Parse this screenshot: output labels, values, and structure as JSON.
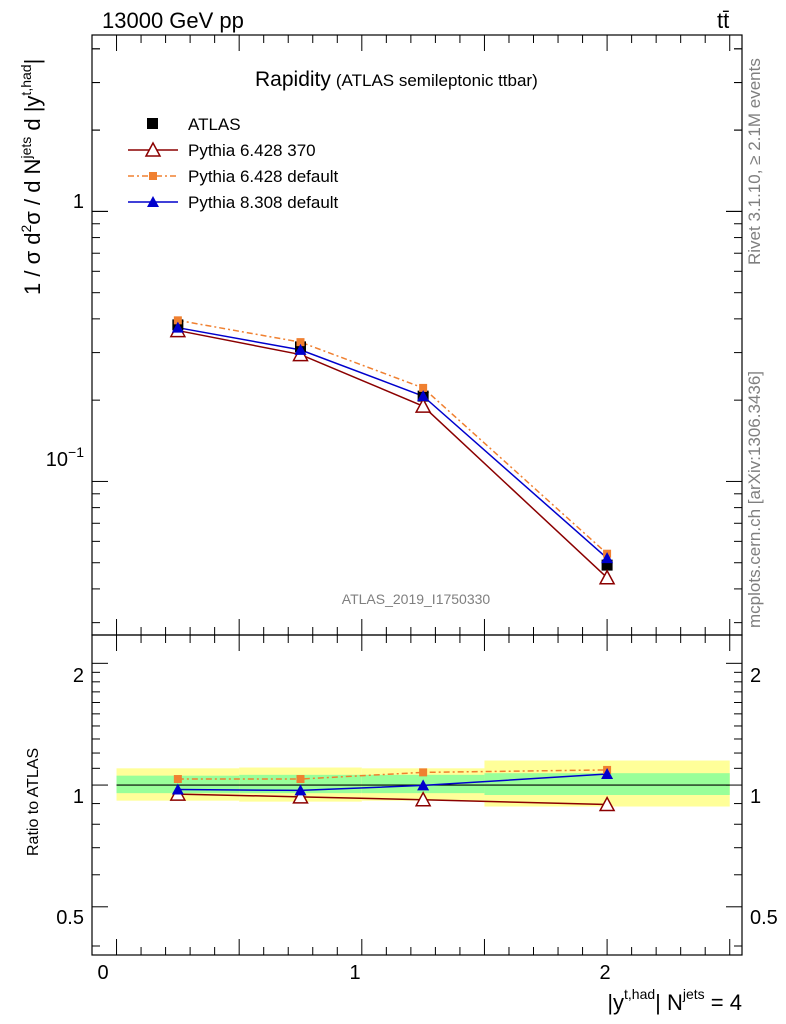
{
  "header": {
    "left": "13000 GeV pp",
    "right": "t̅t"
  },
  "side_text": {
    "rivet": "Rivet 3.1.10, ≥ 2.1M events",
    "mcplots": "mcplots.cern.ch [arXiv:1306.3436]"
  },
  "analysis_id": "ATLAS_2019_I1750330",
  "chart_data": [
    {
      "type": "line",
      "title": "Rapidity",
      "subtitle": "(ATLAS semileptonic ttbar)",
      "xlabel": "|y^{t,had}| N^{jets} = 4",
      "ylabel": "1 / σ d²σ / d N^{jets} d |y^{t,had}|",
      "xlim": [
        -0.1,
        2.55
      ],
      "ylim": [
        0.027,
        4.5
      ],
      "log_y": true,
      "ytick_labels": [
        "10⁻¹",
        "1"
      ],
      "xtick_labels": [
        "0",
        "1",
        "2"
      ],
      "legend_position": "top-left",
      "x": [
        0.25,
        0.75,
        1.25,
        2.0
      ],
      "x_bins": [
        [
          0,
          0.5
        ],
        [
          0.5,
          1.0
        ],
        [
          1.0,
          1.5
        ],
        [
          1.5,
          2.5
        ]
      ],
      "series": [
        {
          "name": "ATLAS",
          "values": [
            0.38,
            0.315,
            0.207,
            0.049
          ],
          "color": "#000000",
          "marker": "square"
        },
        {
          "name": "Pythia 6.428 370",
          "values": [
            0.362,
            0.295,
            0.19,
            0.044
          ],
          "color": "#8b0000",
          "marker": "open-triangle"
        },
        {
          "name": "Pythia 6.428 default",
          "values": [
            0.395,
            0.328,
            0.222,
            0.054
          ],
          "color": "#f08030",
          "marker": "small-square",
          "dash": true
        },
        {
          "name": "Pythia 8.308 default",
          "values": [
            0.371,
            0.307,
            0.207,
            0.052
          ],
          "color": "#0000cc",
          "marker": "triangle"
        }
      ]
    },
    {
      "type": "line",
      "ylabel": "Ratio to ATLAS",
      "xlim": [
        -0.1,
        2.55
      ],
      "ylim": [
        0.38,
        2.35
      ],
      "log_y": true,
      "ytick_labels": [
        "0.5",
        "1",
        "2"
      ],
      "x": [
        0.25,
        0.75,
        1.25,
        2.0
      ],
      "x_bins": [
        [
          0,
          0.5
        ],
        [
          0.5,
          1.0
        ],
        [
          1.0,
          1.5
        ],
        [
          1.5,
          2.5
        ]
      ],
      "band_inner": [
        [
          0.955,
          1.055
        ],
        [
          0.955,
          1.06
        ],
        [
          0.955,
          1.06
        ],
        [
          0.945,
          1.07
        ]
      ],
      "band_outer": [
        [
          0.915,
          1.1
        ],
        [
          0.91,
          1.105
        ],
        [
          0.915,
          1.1
        ],
        [
          0.885,
          1.15
        ]
      ],
      "band_colors": {
        "inner": "#99ff99",
        "outer": "#ffff99"
      },
      "series": [
        {
          "name": "Pythia 6.428 370",
          "values": [
            0.95,
            0.935,
            0.92,
            0.895
          ],
          "color": "#8b0000",
          "marker": "open-triangle"
        },
        {
          "name": "Pythia 6.428 default",
          "values": [
            1.035,
            1.035,
            1.075,
            1.09
          ],
          "color": "#f08030",
          "marker": "small-square",
          "dash": true
        },
        {
          "name": "Pythia 8.308 default",
          "values": [
            0.975,
            0.97,
            0.998,
            1.065
          ],
          "color": "#0000cc",
          "marker": "triangle"
        }
      ]
    }
  ]
}
